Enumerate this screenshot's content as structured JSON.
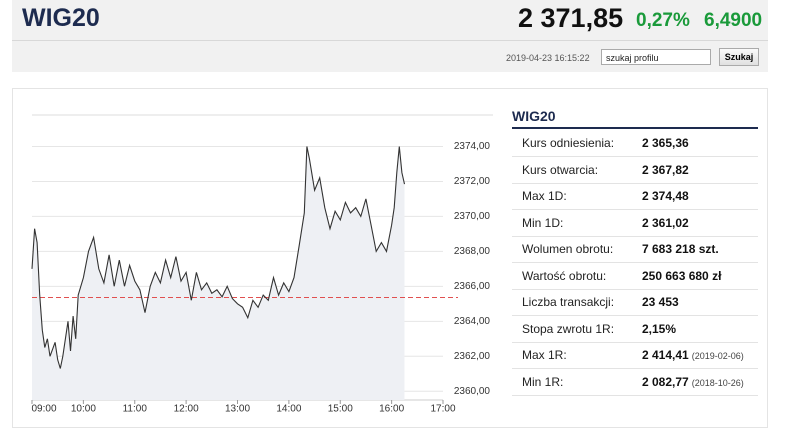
{
  "header": {
    "title": "WIG20",
    "price": "2 371,85",
    "change_pct": "0,27%",
    "change_abs": "6,4900",
    "timestamp": "2019-04-23 16:15:22",
    "search_placeholder": "szukaj profilu",
    "search_button": "Szukaj"
  },
  "chart_data": {
    "type": "line",
    "color": "#333333",
    "area_color": "#eef0f4",
    "grid": true,
    "x": [
      9.0,
      9.05,
      9.1,
      9.15,
      9.2,
      9.25,
      9.3,
      9.35,
      9.45,
      9.5,
      9.55,
      9.6,
      9.7,
      9.75,
      9.8,
      9.85,
      9.9,
      10.0,
      10.1,
      10.2,
      10.3,
      10.4,
      10.5,
      10.6,
      10.7,
      10.8,
      10.9,
      11.0,
      11.1,
      11.2,
      11.3,
      11.4,
      11.5,
      11.6,
      11.7,
      11.8,
      11.9,
      12.0,
      12.1,
      12.2,
      12.3,
      12.4,
      12.5,
      12.6,
      12.7,
      12.8,
      12.9,
      13.0,
      13.1,
      13.2,
      13.3,
      13.4,
      13.5,
      13.6,
      13.7,
      13.8,
      13.9,
      14.0,
      14.1,
      14.2,
      14.3,
      14.35,
      14.4,
      14.5,
      14.6,
      14.7,
      14.8,
      14.9,
      15.0,
      15.1,
      15.2,
      15.3,
      15.4,
      15.5,
      15.6,
      15.7,
      15.8,
      15.9,
      16.0,
      16.05,
      16.1,
      16.15,
      16.2,
      16.25
    ],
    "values": [
      2367.0,
      2369.3,
      2368.5,
      2365.5,
      2363.5,
      2362.5,
      2363.0,
      2362.0,
      2362.8,
      2361.8,
      2361.3,
      2362.0,
      2364.0,
      2362.3,
      2364.3,
      2363.0,
      2365.5,
      2366.5,
      2368.0,
      2368.8,
      2367.0,
      2366.2,
      2367.8,
      2366.0,
      2367.5,
      2366.0,
      2367.2,
      2366.3,
      2365.8,
      2364.5,
      2366.0,
      2366.8,
      2366.2,
      2367.5,
      2366.5,
      2367.7,
      2366.3,
      2366.8,
      2365.2,
      2366.8,
      2365.8,
      2366.2,
      2365.6,
      2365.8,
      2365.4,
      2366.0,
      2365.3,
      2365.0,
      2364.8,
      2364.2,
      2365.2,
      2364.8,
      2365.5,
      2365.2,
      2366.5,
      2365.5,
      2366.2,
      2365.7,
      2366.5,
      2368.3,
      2370.2,
      2374.0,
      2373.3,
      2371.5,
      2372.2,
      2370.5,
      2369.3,
      2370.3,
      2369.8,
      2370.8,
      2370.2,
      2370.5,
      2370.0,
      2371.0,
      2369.5,
      2368.0,
      2368.5,
      2368.0,
      2369.5,
      2370.5,
      2372.5,
      2374.0,
      2372.5,
      2371.85
    ],
    "reference_line": 2365.36,
    "reference_color": "#e05050",
    "xlim": [
      9,
      17
    ],
    "xticks": [
      {
        "value": 9,
        "label": "09:00"
      },
      {
        "value": 10,
        "label": "10:00"
      },
      {
        "value": 11,
        "label": "11:00"
      },
      {
        "value": 12,
        "label": "12:00"
      },
      {
        "value": 13,
        "label": "13:00"
      },
      {
        "value": 14,
        "label": "14:00"
      },
      {
        "value": 15,
        "label": "15:00"
      },
      {
        "value": 16,
        "label": "16:00"
      },
      {
        "value": 17,
        "label": "17:00"
      }
    ],
    "ylim": [
      2359.5,
      2375.8
    ],
    "yticks": [
      {
        "value": 2360,
        "label": "2360,00"
      },
      {
        "value": 2362,
        "label": "2362,00"
      },
      {
        "value": 2364,
        "label": "2364,00"
      },
      {
        "value": 2366,
        "label": "2366,00"
      },
      {
        "value": 2368,
        "label": "2368,00"
      },
      {
        "value": 2370,
        "label": "2370,00"
      },
      {
        "value": 2372,
        "label": "2372,00"
      },
      {
        "value": 2374,
        "label": "2374,00"
      }
    ]
  },
  "table": {
    "title": "WIG20",
    "rows": [
      {
        "label": "Kurs odniesienia:",
        "value": "2 365,36"
      },
      {
        "label": "Kurs otwarcia:",
        "value": "2 367,82"
      },
      {
        "label": "Max 1D:",
        "value": "2 374,48"
      },
      {
        "label": "Min 1D:",
        "value": "2 361,02"
      },
      {
        "label": "Wolumen obrotu:",
        "value": "7 683 218 szt."
      },
      {
        "label": "Wartość obrotu:",
        "value": "250 663 680 zł"
      },
      {
        "label": "Liczba transakcji:",
        "value": "23 453"
      },
      {
        "label": "Stopa zwrotu 1R:",
        "value": "2,15%"
      },
      {
        "label": "Max 1R:",
        "value": "2 414,41",
        "date": "(2019-02-06)"
      },
      {
        "label": "Min 1R:",
        "value": "2 082,77",
        "date": "(2018-10-26)"
      }
    ]
  }
}
